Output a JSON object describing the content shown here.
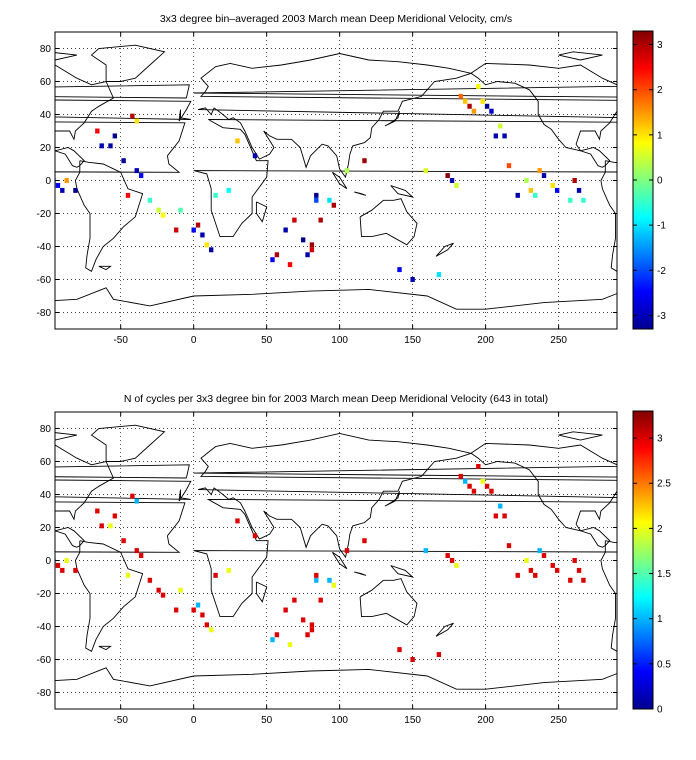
{
  "charts": [
    {
      "title": "3x3 degree bin–averaged 2003 March mean Deep Meridional Velocity, cm/s",
      "xticks": [
        "-50",
        "0",
        "50",
        "100",
        "150",
        "200",
        "250"
      ],
      "xtick_values": [
        -50,
        0,
        50,
        100,
        150,
        200,
        250
      ],
      "yticks": [
        "80",
        "60",
        "40",
        "20",
        "0",
        "-20",
        "-40",
        "-60",
        "-80"
      ],
      "ytick_values": [
        80,
        60,
        40,
        20,
        0,
        -20,
        -40,
        -60,
        -80
      ],
      "colorbar_ticks": [
        "3",
        "2",
        "1",
        "0",
        "-1",
        "-2",
        "-3"
      ],
      "colorbar_values": [
        3,
        2,
        1,
        0,
        -1,
        -2,
        -3
      ]
    },
    {
      "title": "N of cycles per 3x3 degree bin for 2003 March mean Deep Meridional Velocity (643 in total)",
      "xticks": [
        "-50",
        "0",
        "50",
        "100",
        "150",
        "200",
        "250"
      ],
      "xtick_values": [
        -50,
        0,
        50,
        100,
        150,
        200,
        250
      ],
      "yticks": [
        "80",
        "60",
        "40",
        "20",
        "0",
        "-20",
        "-40",
        "-60",
        "-80"
      ],
      "ytick_values": [
        80,
        60,
        40,
        20,
        0,
        -20,
        -40,
        -60,
        -80
      ],
      "colorbar_ticks": [
        "3",
        "2.5",
        "2",
        "1.5",
        "1",
        "0.5",
        "0"
      ],
      "colorbar_values": [
        3,
        2.5,
        2,
        1.5,
        1,
        0.5,
        0
      ]
    }
  ],
  "chart_data": [
    {
      "type": "heatmap",
      "title": "3x3 degree bin–averaged 2003 March mean Deep Meridional Velocity, cm/s",
      "xlim": [
        -95,
        290
      ],
      "ylim": [
        -90,
        90
      ],
      "clim": [
        -3.3,
        3.3
      ],
      "colormap": "jet",
      "grid": true,
      "x": [
        -96,
        -93,
        -90,
        -87,
        -81,
        -66,
        -63,
        -57,
        -54,
        -48,
        -45,
        -42,
        -39,
        -39,
        -36,
        -30,
        -24,
        -21,
        -12,
        -9,
        0,
        3,
        6,
        9,
        12,
        15,
        24,
        30,
        42,
        54,
        57,
        63,
        66,
        69,
        75,
        78,
        81,
        81,
        84,
        84,
        87,
        93,
        96,
        105,
        117,
        141,
        150,
        159,
        168,
        174,
        177,
        180,
        183,
        186,
        189,
        192,
        195,
        198,
        201,
        204,
        207,
        210,
        213,
        216,
        222,
        228,
        231,
        234,
        237,
        240,
        246,
        249,
        258,
        261,
        264,
        267
      ],
      "y": [
        0,
        -3,
        -6,
        0,
        -6,
        30,
        21,
        21,
        27,
        12,
        -9,
        39,
        36,
        6,
        3,
        -12,
        -18,
        -21,
        -30,
        -18,
        -30,
        -27,
        -33,
        -39,
        -42,
        -9,
        -6,
        24,
        15,
        -48,
        -45,
        -30,
        -51,
        -24,
        -36,
        -45,
        -39,
        -42,
        -12,
        -9,
        -24,
        -12,
        -15,
        6,
        12,
        -54,
        -60,
        6,
        -57,
        3,
        0,
        -3,
        51,
        48,
        45,
        42,
        57,
        48,
        45,
        42,
        27,
        33,
        27,
        9,
        -9,
        0,
        -6,
        -9,
        6,
        3,
        -3,
        -6,
        -12,
        0,
        -6,
        -12
      ],
      "values": [
        -1.8,
        -2.5,
        -3,
        1.5,
        -3.2,
        2.5,
        -3,
        -3.1,
        -3.2,
        -3.1,
        2.5,
        3,
        1,
        -3,
        -2.5,
        -0.5,
        0.5,
        0.8,
        2.8,
        -0.3,
        -2.5,
        3,
        -3,
        1,
        -3.1,
        -0.5,
        -0.8,
        1.2,
        -3,
        -2.5,
        3,
        -3,
        2.5,
        2.8,
        -3.2,
        -3,
        3.1,
        2.8,
        -2,
        -3.2,
        3,
        -1,
        3,
        0.3,
        3.1,
        -2.5,
        -3,
        0.6,
        -1,
        3.2,
        -3,
        0.5,
        1.8,
        1.2,
        3,
        1.5,
        0.8,
        1,
        -3.2,
        -2.8,
        -3,
        0.5,
        -3,
        2,
        -3,
        0.3,
        1.2,
        -0.5,
        1.5,
        -3,
        1,
        -2.5,
        -0.5,
        3,
        -3,
        -0.5
      ],
      "land_mask": "world coastlines, 0 to 360 longitude plus wrap"
    },
    {
      "type": "heatmap",
      "title": "N of cycles per 3x3 degree bin for 2003 March mean Deep Meridional Velocity (643 in total)",
      "xlim": [
        -95,
        290
      ],
      "ylim": [
        -90,
        90
      ],
      "clim": [
        0,
        3.3
      ],
      "colormap": "jet",
      "grid": true,
      "total_cycles": 643,
      "x": [
        -96,
        -93,
        -90,
        -87,
        -81,
        -66,
        -63,
        -57,
        -54,
        -48,
        -45,
        -42,
        -39,
        -39,
        -36,
        -30,
        -24,
        -21,
        -12,
        -9,
        0,
        3,
        6,
        9,
        12,
        15,
        24,
        30,
        42,
        54,
        57,
        63,
        66,
        69,
        75,
        78,
        81,
        81,
        84,
        84,
        87,
        93,
        96,
        105,
        117,
        141,
        150,
        159,
        168,
        174,
        177,
        180,
        183,
        186,
        189,
        192,
        195,
        198,
        201,
        204,
        207,
        210,
        213,
        216,
        222,
        228,
        231,
        234,
        237,
        240,
        246,
        249,
        258,
        261,
        264,
        267
      ],
      "y": [
        0,
        -3,
        -6,
        0,
        -6,
        30,
        21,
        21,
        27,
        12,
        -9,
        39,
        36,
        6,
        3,
        -12,
        -18,
        -21,
        -30,
        -18,
        -30,
        -27,
        -33,
        -39,
        -42,
        -9,
        -6,
        24,
        15,
        -48,
        -45,
        -30,
        -51,
        -24,
        -36,
        -45,
        -39,
        -42,
        -12,
        -9,
        -24,
        -12,
        -15,
        6,
        12,
        -54,
        -60,
        6,
        -57,
        3,
        0,
        -3,
        51,
        48,
        45,
        42,
        57,
        48,
        45,
        42,
        27,
        33,
        27,
        9,
        -9,
        0,
        -6,
        -9,
        6,
        3,
        -3,
        -6,
        -12,
        0,
        -6,
        -12
      ],
      "values": [
        1,
        3,
        3,
        2,
        3,
        3,
        3,
        2,
        3,
        3,
        2,
        3,
        1,
        3,
        3,
        3,
        3,
        3,
        3,
        2,
        3,
        1,
        3,
        3,
        2,
        3,
        2,
        3,
        3,
        1,
        3,
        3,
        2,
        3,
        3,
        3,
        3,
        3,
        1,
        3,
        3,
        1,
        2,
        3,
        3,
        3,
        3,
        1,
        3,
        3,
        3,
        2,
        3,
        1,
        3,
        3,
        3,
        2,
        3,
        3,
        3,
        1,
        3,
        3,
        3,
        2,
        3,
        3,
        1,
        3,
        3,
        3,
        3,
        3,
        3,
        3
      ],
      "land_mask": "world coastlines, 0 to 360 longitude plus wrap"
    }
  ]
}
